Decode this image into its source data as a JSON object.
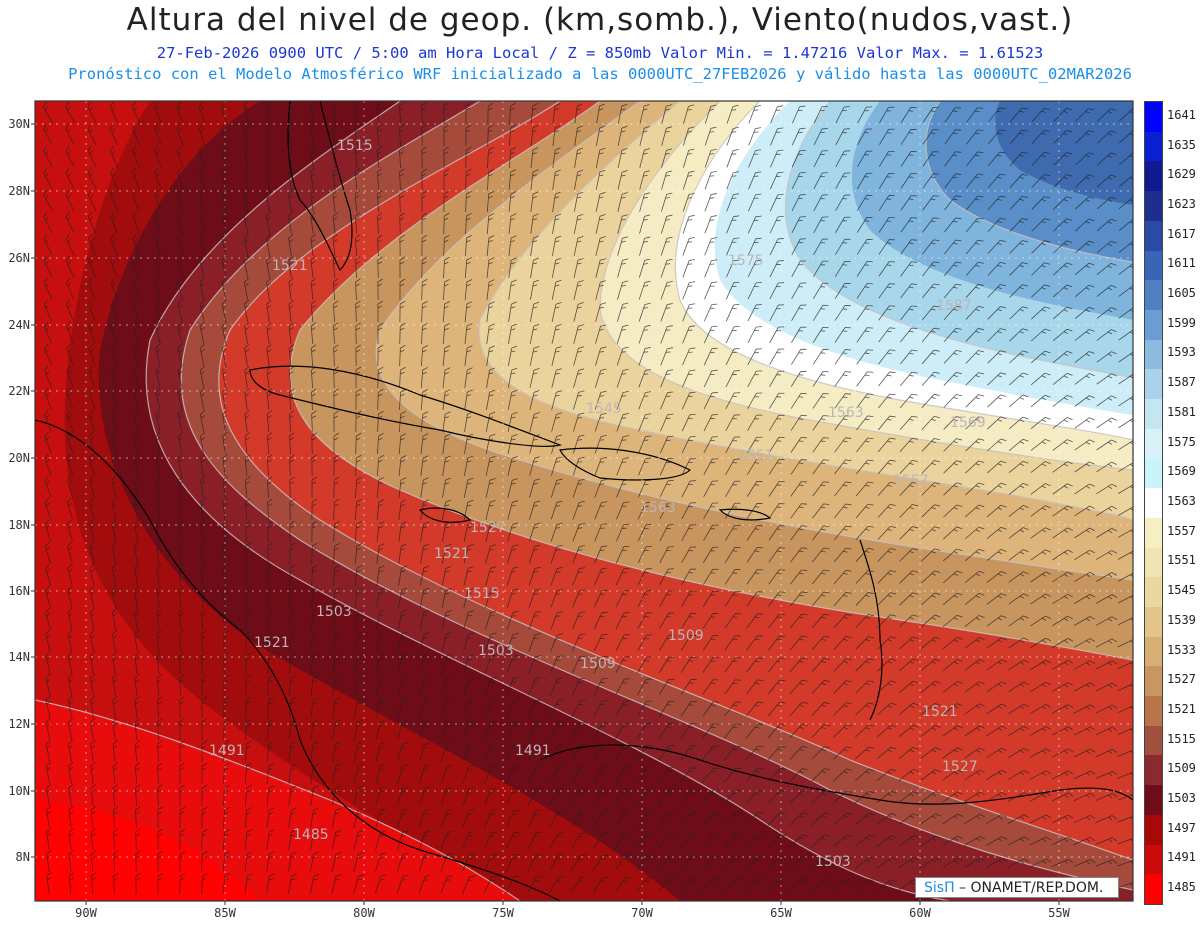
{
  "header": {
    "title": "Altura del nivel de geop. (km,somb.), Viento(nudos,vast.)",
    "line1": "27-Feb-2026  0900 UTC / 5:00 am Hora Local / Z = 850mb     Valor Min. = 1.47216  Valor Max. = 1.61523",
    "line2": "Pronóstico con el Modelo Atmosférico WRF inicializado a las 0000UTC_27FEB2026 y válido hasta las  0000UTC_02MAR2026"
  },
  "axes": {
    "lat_labels": [
      "30N",
      "28N",
      "26N",
      "24N",
      "22N",
      "20N",
      "18N",
      "16N",
      "14N",
      "12N",
      "10N",
      "8N"
    ],
    "lon_labels": [
      "90W",
      "85W",
      "80W",
      "75W",
      "70W",
      "65W",
      "60W",
      "55W"
    ]
  },
  "colorbar": {
    "levels": [
      "1641",
      "1635",
      "1629",
      "1623",
      "1617",
      "1611",
      "1605",
      "1599",
      "1593",
      "1587",
      "1581",
      "1575",
      "1569",
      "1563",
      "1557",
      "1551",
      "1545",
      "1539",
      "1533",
      "1527",
      "1521",
      "1515",
      "1509",
      "1503",
      "1497",
      "1491",
      "1485"
    ],
    "colors": [
      "#0000ff",
      "#0a1fd0",
      "#101a90",
      "#1e2e8c",
      "#2a4aa6",
      "#3a64b4",
      "#4f80c2",
      "#6a9ed2",
      "#8dbbe0",
      "#aad2ea",
      "#c4e6f2",
      "#d9f2f8",
      "#c8f4fa",
      "#ffffff",
      "#f7efc4",
      "#f2e4b2",
      "#ebd7a0",
      "#e3c48a",
      "#d8af72",
      "#c99560",
      "#b8754a",
      "#a1503e",
      "#8a2a30",
      "#6e0c18",
      "#a80808",
      "#cc0a0a",
      "#ff0000"
    ]
  },
  "contour_labels": [
    "1515",
    "1521",
    "1575",
    "1587",
    "1545",
    "1563",
    "1569",
    "1551",
    "1557",
    "1527",
    "1521",
    "1509",
    "1515",
    "1503",
    "1503",
    "1509",
    "1521",
    "1527",
    "1491",
    "1491",
    "1485",
    "1503",
    "1521",
    "1563"
  ],
  "credit": {
    "brand": "SisΠ",
    "org": " – ONAMET/REP.DOM."
  },
  "map_extent": {
    "lon_min": -92.0,
    "lon_max": -53.5,
    "lat_min": 6.8,
    "lat_max": 30.6
  }
}
